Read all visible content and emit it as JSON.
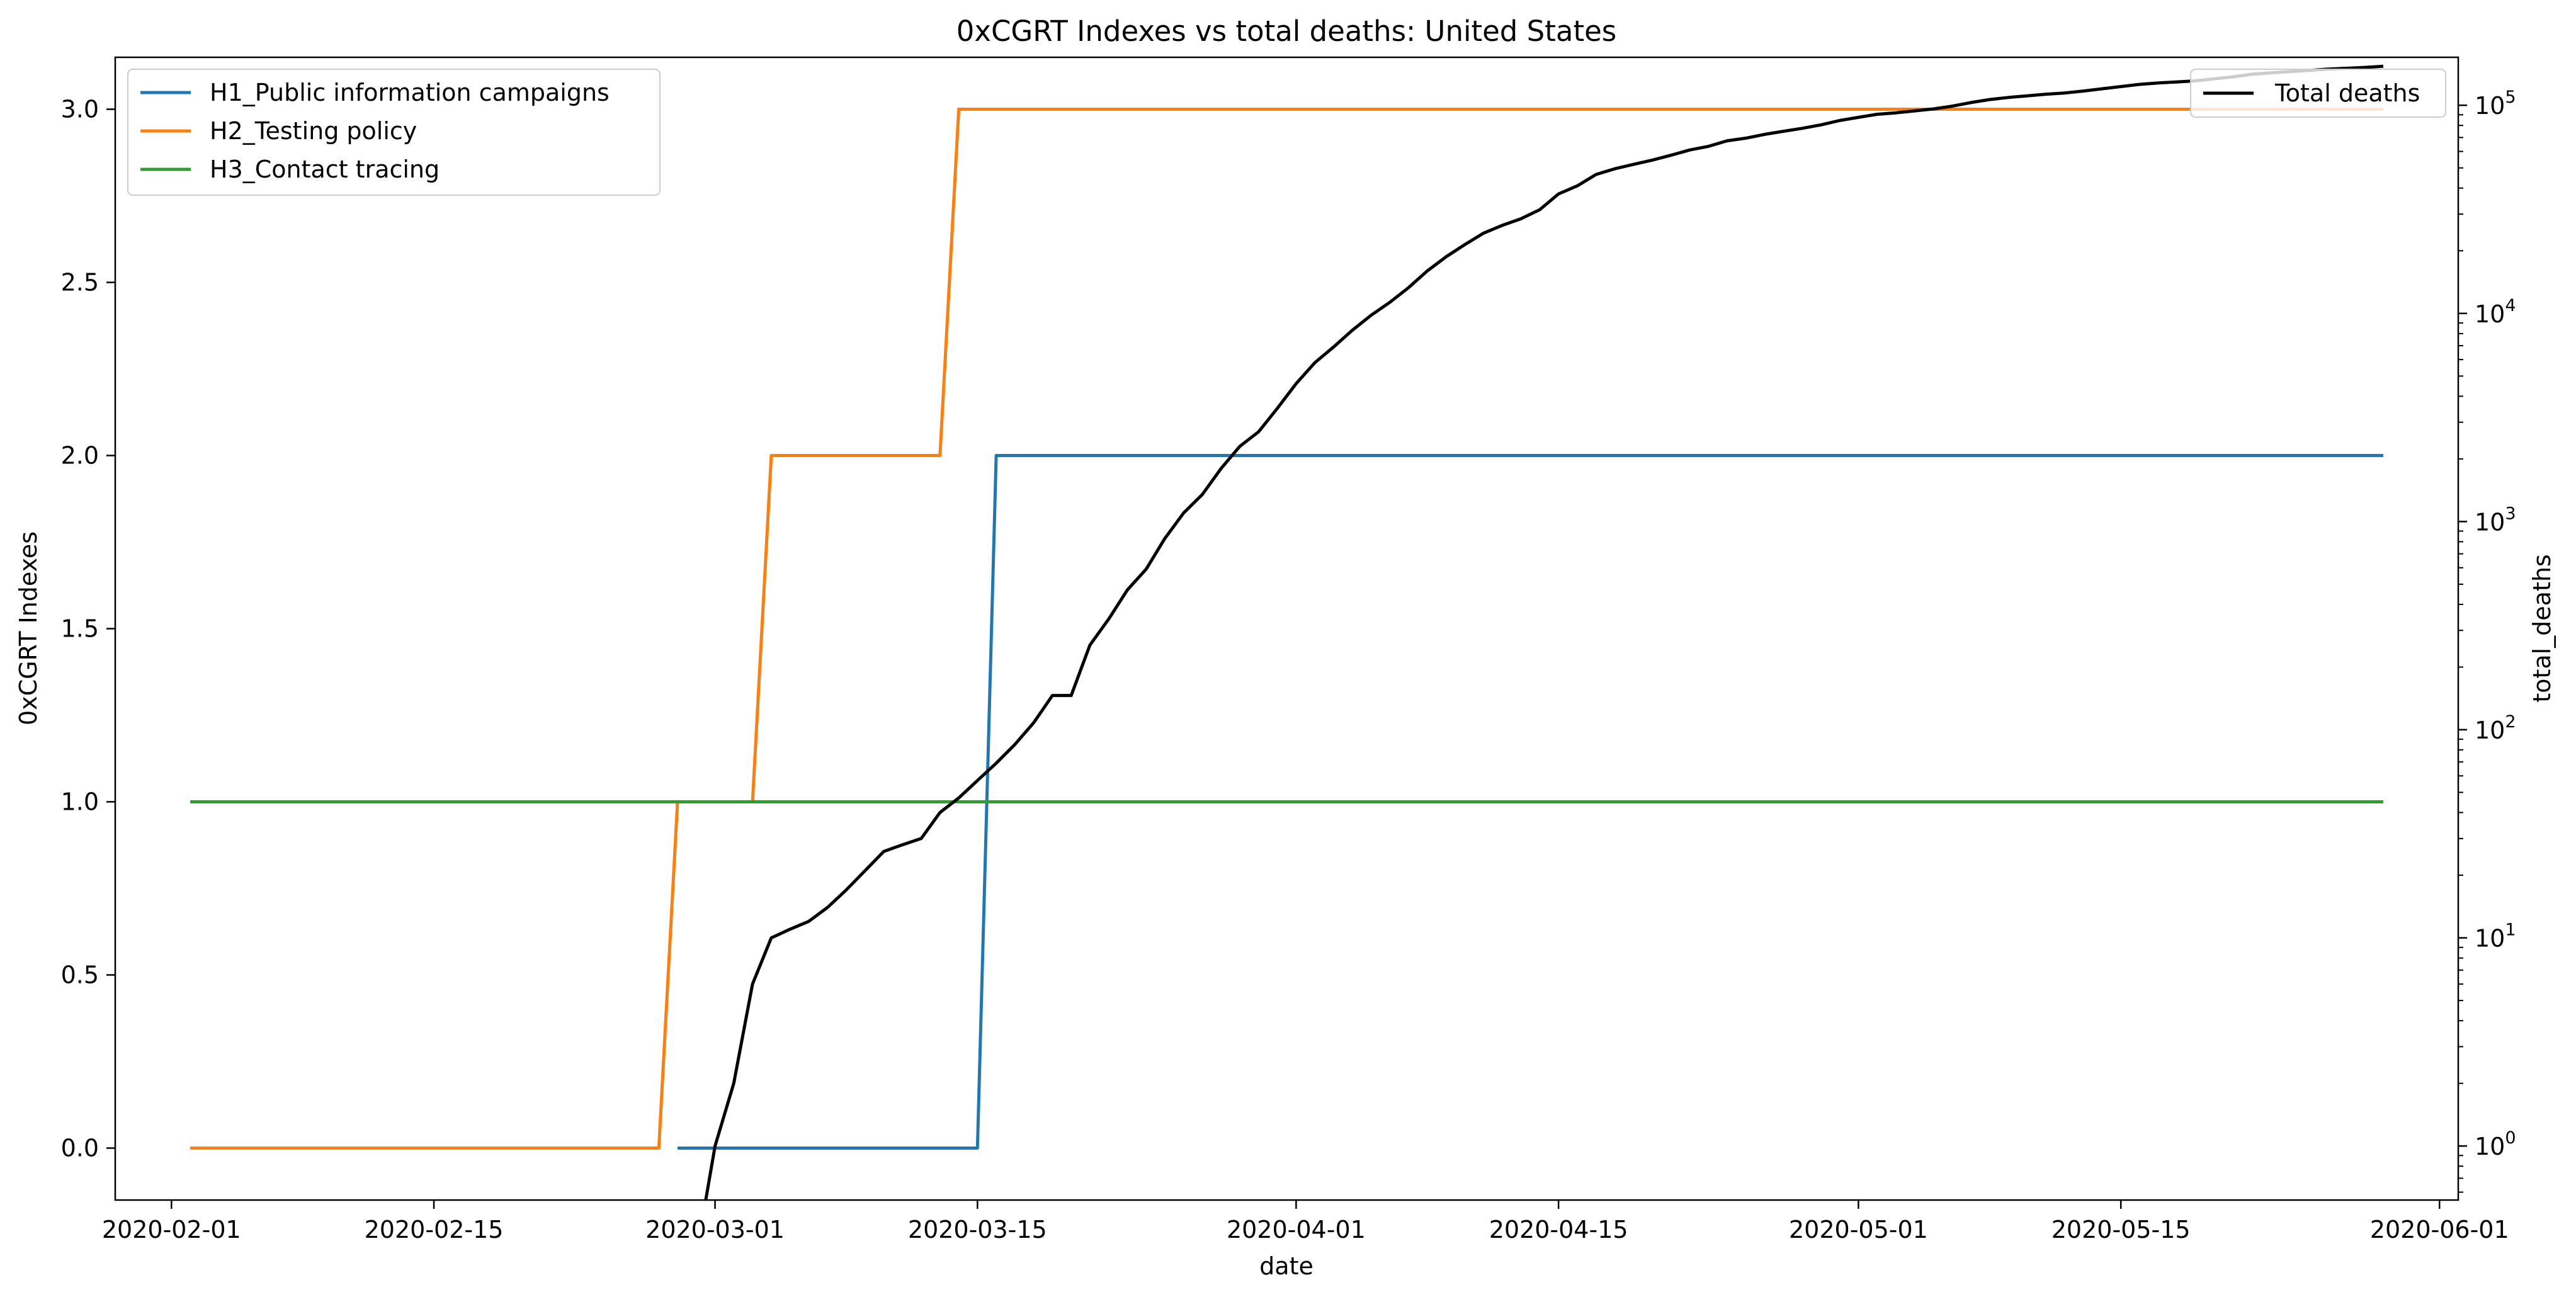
{
  "chart_data": {
    "type": "line",
    "title": "0xCGRT Indexes vs total deaths:  United States",
    "xlabel": "date",
    "ylabel": "0xCGRT Indexes",
    "y2label": "total_deaths",
    "x_ticks": [
      "2020-02-01",
      "2020-02-15",
      "2020-03-01",
      "2020-03-15",
      "2020-04-01",
      "2020-04-15",
      "2020-05-01",
      "2020-05-15",
      "2020-06-01"
    ],
    "y_ticks": [
      "0.0",
      "0.5",
      "1.0",
      "1.5",
      "2.0",
      "2.5",
      "3.0"
    ],
    "y2_ticks": [
      {
        "base": "10",
        "exp": "0"
      },
      {
        "base": "10",
        "exp": "1"
      },
      {
        "base": "10",
        "exp": "2"
      },
      {
        "base": "10",
        "exp": "3"
      },
      {
        "base": "10",
        "exp": "4"
      },
      {
        "base": "10",
        "exp": "5"
      }
    ],
    "xlim": [
      "2020-01-29",
      "2020-06-02"
    ],
    "ylim": [
      -0.15,
      3.15
    ],
    "y2lim": [
      0.55,
      170000
    ],
    "y2scale": "log",
    "grid": false,
    "legend_left": "top-left",
    "legend_right": "top-right",
    "colors": {
      "h1": "#1f77b4",
      "h2": "#ff7f0e",
      "h3": "#2ca02c",
      "deaths": "#000000"
    },
    "series": [
      {
        "name": "H1_Public information campaigns",
        "axis": "left",
        "points": [
          [
            "2020-02-28",
            0
          ],
          [
            "2020-03-15",
            0
          ],
          [
            "2020-03-16",
            2
          ],
          [
            "2020-05-29",
            2
          ]
        ]
      },
      {
        "name": "H2_Testing policy",
        "axis": "left",
        "points": [
          [
            "2020-02-02",
            0
          ],
          [
            "2020-02-27",
            0
          ],
          [
            "2020-02-28",
            1
          ],
          [
            "2020-03-03",
            1
          ],
          [
            "2020-03-04",
            2
          ],
          [
            "2020-03-13",
            2
          ],
          [
            "2020-03-14",
            3
          ],
          [
            "2020-05-29",
            3
          ]
        ]
      },
      {
        "name": "H3_Contact tracing",
        "axis": "left",
        "points": [
          [
            "2020-02-02",
            1
          ],
          [
            "2020-05-29",
            1
          ]
        ]
      },
      {
        "name": "Total deaths",
        "axis": "right",
        "points": [
          [
            "2020-02-29",
            0.3
          ],
          [
            "2020-03-01",
            1
          ],
          [
            "2020-03-02",
            2
          ],
          [
            "2020-03-03",
            6
          ],
          [
            "2020-03-04",
            10
          ],
          [
            "2020-03-05",
            11
          ],
          [
            "2020-03-06",
            12
          ],
          [
            "2020-03-07",
            14
          ],
          [
            "2020-03-08",
            17
          ],
          [
            "2020-03-09",
            21
          ],
          [
            "2020-03-10",
            26
          ],
          [
            "2020-03-11",
            28
          ],
          [
            "2020-03-12",
            30
          ],
          [
            "2020-03-13",
            40
          ],
          [
            "2020-03-14",
            47
          ],
          [
            "2020-03-15",
            57
          ],
          [
            "2020-03-16",
            69
          ],
          [
            "2020-03-17",
            85
          ],
          [
            "2020-03-18",
            108
          ],
          [
            "2020-03-19",
            146
          ],
          [
            "2020-03-20",
            146
          ],
          [
            "2020-03-21",
            255
          ],
          [
            "2020-03-22",
            340
          ],
          [
            "2020-03-23",
            470
          ],
          [
            "2020-03-24",
            590
          ],
          [
            "2020-03-25",
            830
          ],
          [
            "2020-03-26",
            1100
          ],
          [
            "2020-03-27",
            1350
          ],
          [
            "2020-03-28",
            1800
          ],
          [
            "2020-03-29",
            2300
          ],
          [
            "2020-03-30",
            2700
          ],
          [
            "2020-03-31",
            3500
          ],
          [
            "2020-04-01",
            4600
          ],
          [
            "2020-04-02",
            5800
          ],
          [
            "2020-04-03",
            6900
          ],
          [
            "2020-04-04",
            8300
          ],
          [
            "2020-04-05",
            9800
          ],
          [
            "2020-04-06",
            11300
          ],
          [
            "2020-04-07",
            13300
          ],
          [
            "2020-04-08",
            16000
          ],
          [
            "2020-04-09",
            18700
          ],
          [
            "2020-04-10",
            21400
          ],
          [
            "2020-04-11",
            24300
          ],
          [
            "2020-04-12",
            26500
          ],
          [
            "2020-04-13",
            28500
          ],
          [
            "2020-04-14",
            31500
          ],
          [
            "2020-04-15",
            37500
          ],
          [
            "2020-04-16",
            41000
          ],
          [
            "2020-04-17",
            46500
          ],
          [
            "2020-04-18",
            49500
          ],
          [
            "2020-04-19",
            52000
          ],
          [
            "2020-04-20",
            54500
          ],
          [
            "2020-04-21",
            57500
          ],
          [
            "2020-04-22",
            61000
          ],
          [
            "2020-04-23",
            63500
          ],
          [
            "2020-04-24",
            67500
          ],
          [
            "2020-04-25",
            69500
          ],
          [
            "2020-04-26",
            72500
          ],
          [
            "2020-04-27",
            75000
          ],
          [
            "2020-04-28",
            77500
          ],
          [
            "2020-04-29",
            80500
          ],
          [
            "2020-04-30",
            84500
          ],
          [
            "2020-05-01",
            87500
          ],
          [
            "2020-05-02",
            90500
          ],
          [
            "2020-05-03",
            92000
          ],
          [
            "2020-05-04",
            94000
          ],
          [
            "2020-05-05",
            96000
          ],
          [
            "2020-05-06",
            99000
          ],
          [
            "2020-05-07",
            103000
          ],
          [
            "2020-05-08",
            106500
          ],
          [
            "2020-05-09",
            109000
          ],
          [
            "2020-05-10",
            111000
          ],
          [
            "2020-05-11",
            113000
          ],
          [
            "2020-05-12",
            114500
          ],
          [
            "2020-05-13",
            117000
          ],
          [
            "2020-05-14",
            120000
          ],
          [
            "2020-05-15",
            123000
          ],
          [
            "2020-05-16",
            126000
          ],
          [
            "2020-05-17",
            128000
          ],
          [
            "2020-05-18",
            129500
          ],
          [
            "2020-05-19",
            131000
          ],
          [
            "2020-05-20",
            134000
          ],
          [
            "2020-05-21",
            137000
          ],
          [
            "2020-05-22",
            141000
          ],
          [
            "2020-05-23",
            143000
          ],
          [
            "2020-05-24",
            145000
          ],
          [
            "2020-05-25",
            147000
          ],
          [
            "2020-05-26",
            149000
          ],
          [
            "2020-05-27",
            150500
          ],
          [
            "2020-05-28",
            152000
          ],
          [
            "2020-05-29",
            154000
          ]
        ]
      }
    ]
  }
}
